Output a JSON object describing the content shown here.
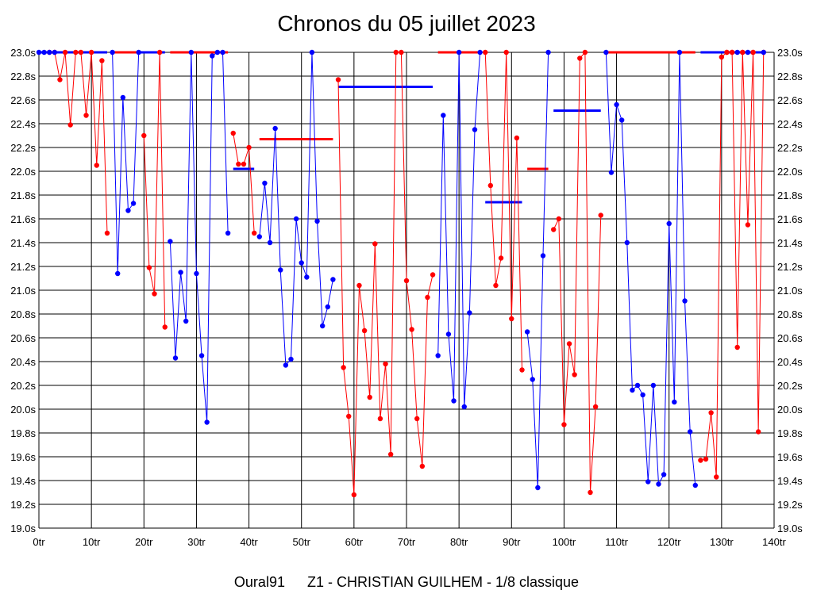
{
  "chart_data": {
    "type": "line",
    "title": "Chronos du 05 juillet 2023",
    "xlabel": "",
    "ylabel": "",
    "xlim": [
      0,
      140
    ],
    "ylim": [
      19.0,
      23.0
    ],
    "grid": true,
    "x_tick_labels": [
      "0tr",
      "10tr",
      "20tr",
      "30tr",
      "40tr",
      "50tr",
      "60tr",
      "70tr",
      "80tr",
      "90tr",
      "100tr",
      "110tr",
      "120tr",
      "130tr",
      "140tr"
    ],
    "y_tick_labels": [
      "19.0s",
      "19.2s",
      "19.4s",
      "19.6s",
      "19.8s",
      "20.0s",
      "20.2s",
      "20.4s",
      "20.6s",
      "20.8s",
      "21.0s",
      "21.2s",
      "21.4s",
      "21.6s",
      "21.8s",
      "22.0s",
      "22.2s",
      "22.4s",
      "22.6s",
      "22.8s",
      "23.0s"
    ],
    "colors": {
      "red": "#ff0000",
      "blue": "#0000ff",
      "grid": "#000000"
    },
    "series": [
      {
        "name": "red-1",
        "color": "red",
        "x": [
          2,
          3,
          4,
          5,
          6,
          7,
          8,
          9,
          10,
          11,
          12,
          13
        ],
        "y": [
          23.0,
          23.0,
          22.77,
          23.0,
          22.39,
          23.0,
          23.0,
          22.47,
          23.0,
          22.05,
          22.93,
          21.48
        ]
      },
      {
        "name": "blue-1",
        "color": "blue",
        "x": [
          14,
          15,
          16,
          17,
          18,
          19
        ],
        "y": [
          23.0,
          21.14,
          22.62,
          21.67,
          21.73,
          23.0
        ]
      },
      {
        "name": "red-2",
        "color": "red",
        "x": [
          20,
          21,
          22,
          23,
          24
        ],
        "y": [
          22.3,
          21.19,
          20.97,
          23.0,
          20.69
        ]
      },
      {
        "name": "blue-2",
        "color": "blue",
        "x": [
          25,
          26,
          27,
          28,
          29,
          30,
          31,
          32,
          33,
          34,
          35,
          36
        ],
        "y": [
          21.41,
          20.43,
          21.15,
          20.74,
          23.0,
          21.14,
          20.45,
          19.89,
          22.97,
          23.0,
          23.0,
          21.48
        ]
      },
      {
        "name": "red-3",
        "color": "red",
        "x": [
          37,
          38,
          39,
          40,
          41
        ],
        "y": [
          22.32,
          22.06,
          22.06,
          22.2,
          21.48
        ]
      },
      {
        "name": "blue-3",
        "color": "blue",
        "x": [
          42,
          43,
          44,
          45,
          46,
          47,
          48,
          49,
          50,
          51,
          52,
          53,
          54,
          55,
          56
        ],
        "y": [
          21.45,
          21.9,
          21.4,
          22.36,
          21.17,
          20.37,
          20.42,
          21.6,
          21.23,
          21.11,
          23.0,
          21.58,
          20.7,
          20.86,
          21.09
        ]
      },
      {
        "name": "red-4",
        "color": "red",
        "x": [
          57,
          58,
          59,
          60,
          61,
          62,
          63,
          64,
          65,
          66,
          67,
          68,
          69,
          70,
          71,
          72,
          73,
          74,
          75
        ],
        "y": [
          22.77,
          20.35,
          19.94,
          19.28,
          21.04,
          20.66,
          20.1,
          21.39,
          19.92,
          20.38,
          19.62,
          23.0,
          23.0,
          21.08,
          20.67,
          19.92,
          19.52,
          20.94,
          21.13
        ]
      },
      {
        "name": "blue-4",
        "color": "blue",
        "x": [
          76,
          77,
          78,
          79,
          80,
          81,
          82,
          83,
          84
        ],
        "y": [
          20.45,
          22.47,
          20.63,
          20.07,
          23.0,
          20.02,
          20.81,
          22.35,
          23.0
        ]
      },
      {
        "name": "red-5",
        "color": "red",
        "x": [
          85,
          86,
          87,
          88,
          89,
          90,
          91,
          92
        ],
        "y": [
          23.0,
          21.88,
          21.04,
          21.27,
          23.0,
          20.76,
          22.28,
          20.33
        ]
      },
      {
        "name": "blue-5",
        "color": "blue",
        "x": [
          93,
          94,
          95,
          96,
          97
        ],
        "y": [
          20.65,
          20.25,
          19.34,
          21.29,
          23.0
        ]
      },
      {
        "name": "red-6",
        "color": "red",
        "x": [
          98,
          99,
          100,
          101,
          102,
          103,
          104,
          105,
          106,
          107
        ],
        "y": [
          21.51,
          21.6,
          19.87,
          20.55,
          20.29,
          22.95,
          23.0,
          19.3,
          20.02,
          21.63
        ]
      },
      {
        "name": "blue-6",
        "color": "blue",
        "x": [
          108,
          109,
          110,
          111,
          112,
          113,
          114,
          115,
          116,
          117,
          118,
          119,
          120,
          121,
          122,
          123,
          124,
          125
        ],
        "y": [
          23.0,
          21.99,
          22.56,
          22.43,
          21.4,
          20.16,
          20.2,
          20.12,
          19.39,
          20.2,
          19.37,
          19.45,
          21.56,
          20.06,
          23.0,
          20.91,
          19.81,
          19.36
        ]
      },
      {
        "name": "red-7",
        "color": "red",
        "x": [
          126,
          127,
          128,
          129,
          130,
          131,
          132,
          133,
          134,
          135,
          136,
          137,
          138
        ],
        "y": [
          19.57,
          19.58,
          19.97,
          19.43,
          22.96,
          23.0,
          23.0,
          20.52,
          23.0,
          21.55,
          23.0,
          19.81,
          23.0
        ]
      }
    ],
    "top_markers": [
      {
        "color": "blue",
        "x": [
          0,
          1,
          2,
          3
        ]
      },
      {
        "color": "red",
        "x": [
          131,
          132,
          134,
          136
        ]
      },
      {
        "color": "blue",
        "x": [
          133,
          135,
          138
        ]
      }
    ],
    "averages": [
      {
        "color": "blue",
        "x_start": 0,
        "x_end": 13,
        "y": 23.0
      },
      {
        "color": "red",
        "x_start": 14,
        "x_end": 19,
        "y": 23.0
      },
      {
        "color": "blue",
        "x_start": 19,
        "x_end": 24,
        "y": 23.0
      },
      {
        "color": "red",
        "x_start": 25,
        "x_end": 36,
        "y": 23.0
      },
      {
        "color": "blue",
        "x_start": 37,
        "x_end": 41,
        "y": 22.02
      },
      {
        "color": "red",
        "x_start": 42,
        "x_end": 56,
        "y": 22.27
      },
      {
        "color": "blue",
        "x_start": 57,
        "x_end": 75,
        "y": 22.71
      },
      {
        "color": "red",
        "x_start": 76,
        "x_end": 84,
        "y": 23.0
      },
      {
        "color": "blue",
        "x_start": 85,
        "x_end": 92,
        "y": 21.74
      },
      {
        "color": "red",
        "x_start": 93,
        "x_end": 97,
        "y": 22.02
      },
      {
        "color": "blue",
        "x_start": 98,
        "x_end": 107,
        "y": 22.51
      },
      {
        "color": "red",
        "x_start": 108,
        "x_end": 125,
        "y": 23.0
      },
      {
        "color": "blue",
        "x_start": 126,
        "x_end": 138,
        "y": 23.0
      }
    ]
  },
  "footer": {
    "club": "Oural91",
    "pilot": "Z1 - CHRISTIAN GUILHEM - 1/8 classique"
  }
}
